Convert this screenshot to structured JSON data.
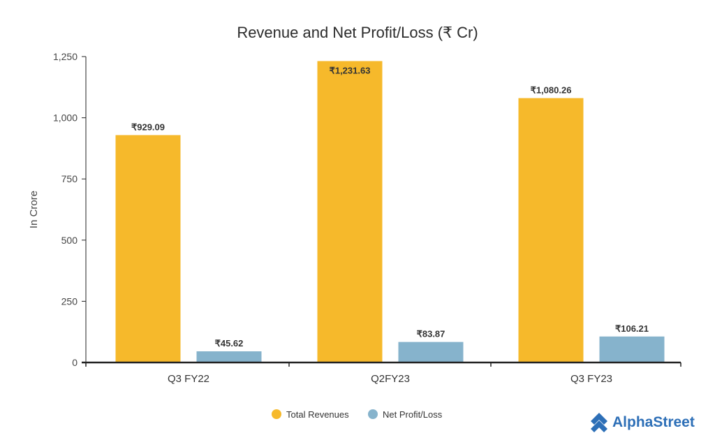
{
  "colors": {
    "revenue": "#f6b92b",
    "profit": "#86b3cc",
    "axis": "#222222",
    "brand": "#2d6fb7"
  },
  "brand": {
    "name": "AlphaStreet",
    "icon": "alphastreet-logo-icon"
  },
  "chart_data": {
    "type": "bar",
    "title": "Revenue and Net Profit/Loss (₹ Cr)",
    "xlabel": "",
    "ylabel": "In Crore",
    "ylim": [
      0,
      1250
    ],
    "yticks": [
      0,
      250,
      500,
      750,
      1000,
      1250
    ],
    "ytick_labels": [
      "0",
      "250",
      "500",
      "750",
      "1,000",
      "1,250"
    ],
    "grid": false,
    "legend_position": "bottom-center",
    "categories": [
      "Q3 FY22",
      "Q2FY23",
      "Q3 FY23"
    ],
    "series": [
      {
        "name": "Total Revenues",
        "values": [
          929.09,
          1231.63,
          1080.26
        ],
        "labels": [
          "₹929.09",
          "₹1,231.63",
          "₹1,080.26"
        ]
      },
      {
        "name": "Net Profit/Loss",
        "values": [
          45.62,
          83.87,
          106.21
        ],
        "labels": [
          "₹45.62",
          "₹83.87",
          "₹106.21"
        ]
      }
    ]
  }
}
